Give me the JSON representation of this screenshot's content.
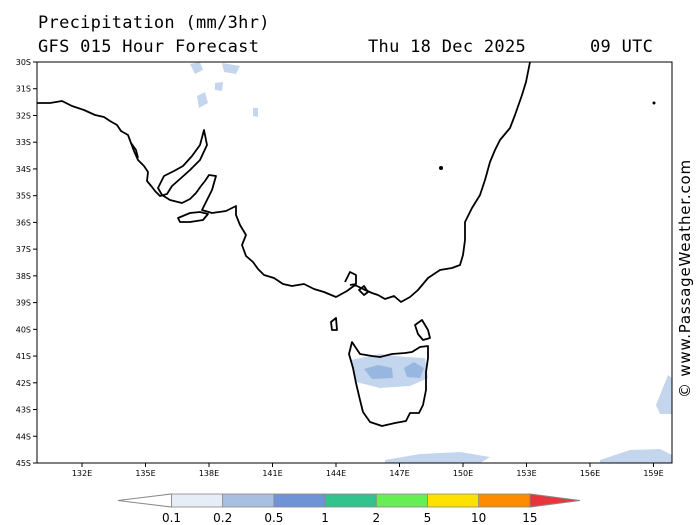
{
  "header": {
    "title": "Precipitation (mm/3hr)",
    "model": "GFS 015 Hour Forecast",
    "date": "Thu 18 Dec 2025",
    "time": "09 UTC"
  },
  "credit": "© www.PassageWeather.com",
  "lat_labels": [
    "30S",
    "31S",
    "32S",
    "33S",
    "34S",
    "35S",
    "36S",
    "37S",
    "38S",
    "39S",
    "40S",
    "41S",
    "42S",
    "43S",
    "44S",
    "45S"
  ],
  "lon_labels": [
    "132E",
    "135E",
    "138E",
    "141E",
    "144E",
    "147E",
    "150E",
    "153E",
    "156E",
    "159E"
  ],
  "legend": {
    "values": [
      "0.1",
      "0.2",
      "0.5",
      "1",
      "2",
      "5",
      "10",
      "15"
    ],
    "colors": [
      "#ffffff",
      "#e6edf7",
      "#a8c0e0",
      "#6f93d6",
      "#33c38f",
      "#66ee55",
      "#ffe100",
      "#ff8c00",
      "#e8343a"
    ]
  },
  "colors": {
    "coast": "#000000",
    "light_rain": "#c4d6ee",
    "medium_rain": "#97b7e0"
  }
}
